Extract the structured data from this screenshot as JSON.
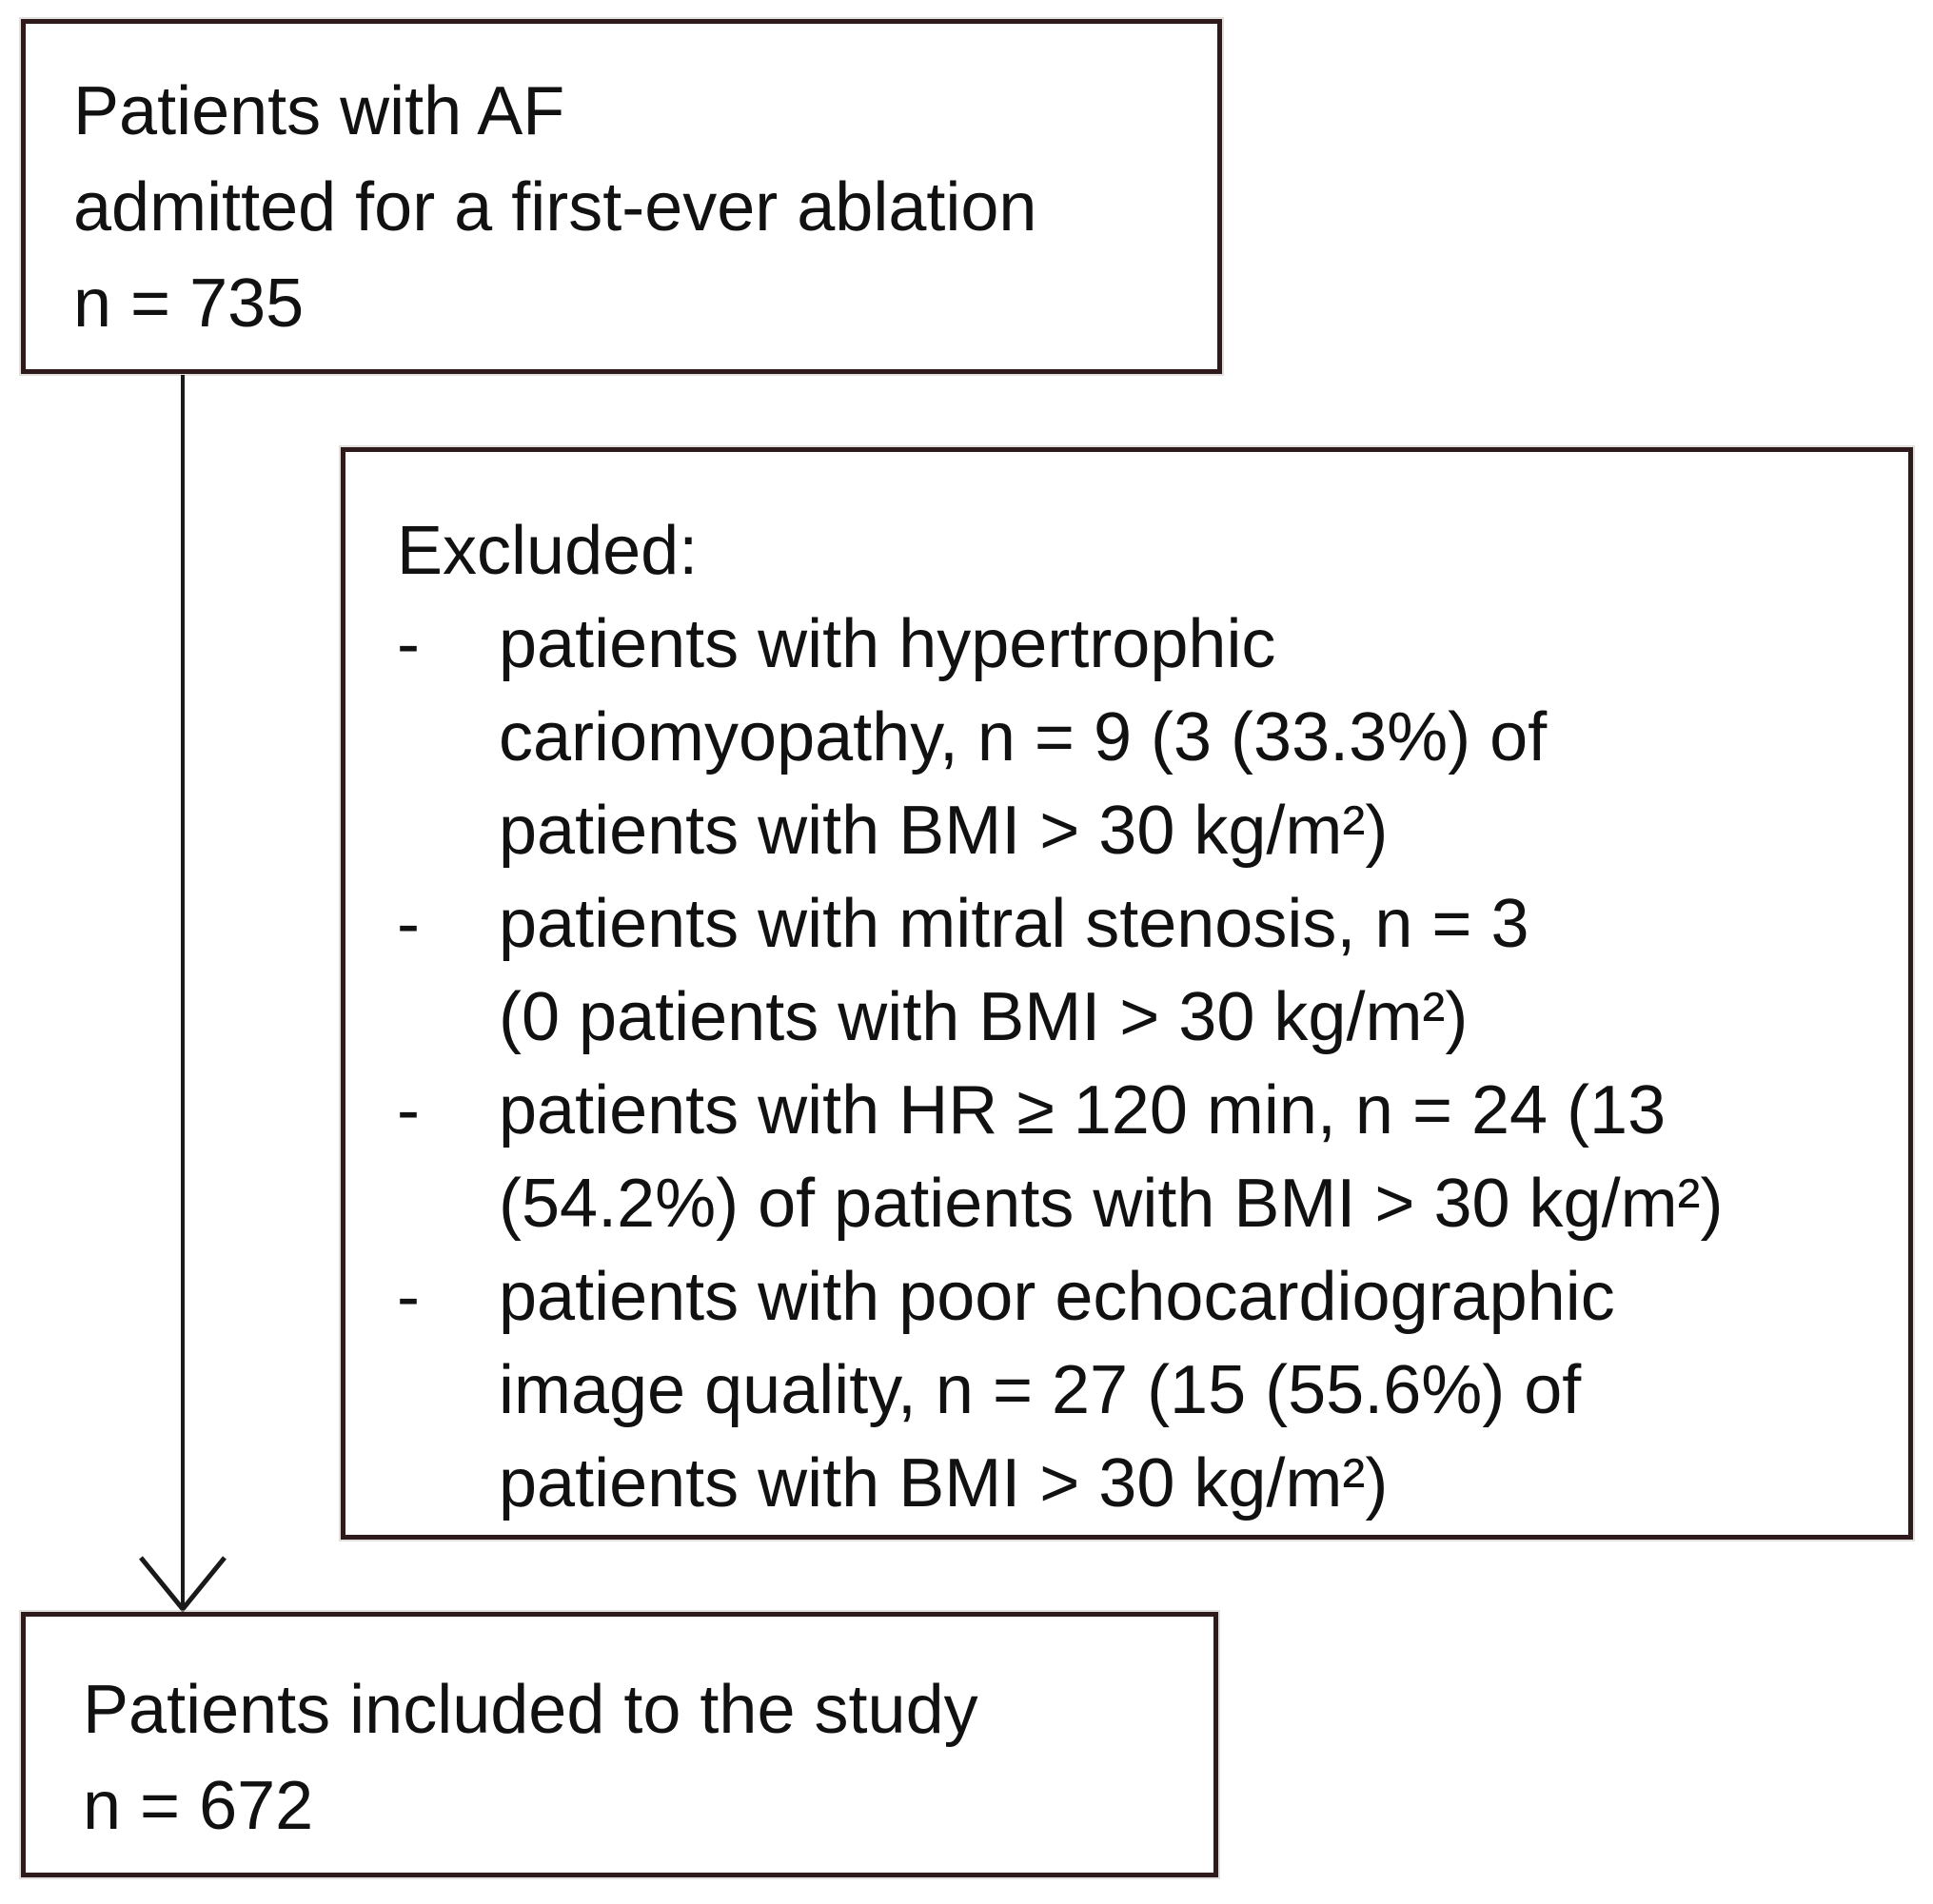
{
  "diagram": {
    "top_box": {
      "lines": [
        "Patients with AF",
        "admitted for a first-ever ablation",
        "n = 735"
      ]
    },
    "excluded_box": {
      "heading": "Excluded:",
      "bullet_glyph": "-",
      "items": [
        {
          "lines": [
            "patients with hypertrophic",
            "cariomyopathy, n = 9 (3 (33.3%) of",
            "patients with BMI > 30 kg/m²)"
          ]
        },
        {
          "lines": [
            "patients with mitral stenosis, n = 3",
            "(0 patients with BMI > 30 kg/m²)"
          ]
        },
        {
          "lines": [
            "patients with HR ≥ 120 min, n = 24 (13",
            "(54.2%) of patients with BMI > 30 kg/m²)"
          ]
        },
        {
          "lines": [
            "patients with poor echocardiographic",
            "image quality, n = 27 (15 (55.6%) of",
            "patients with BMI > 30 kg/m²)"
          ]
        }
      ]
    },
    "bottom_box": {
      "lines": [
        "Patients included to the study",
        "n = 672"
      ]
    },
    "colors": {
      "border": "#2e1a1a",
      "text": "#111111",
      "arrow": "#1a1a1a",
      "background": "#ffffff"
    }
  }
}
